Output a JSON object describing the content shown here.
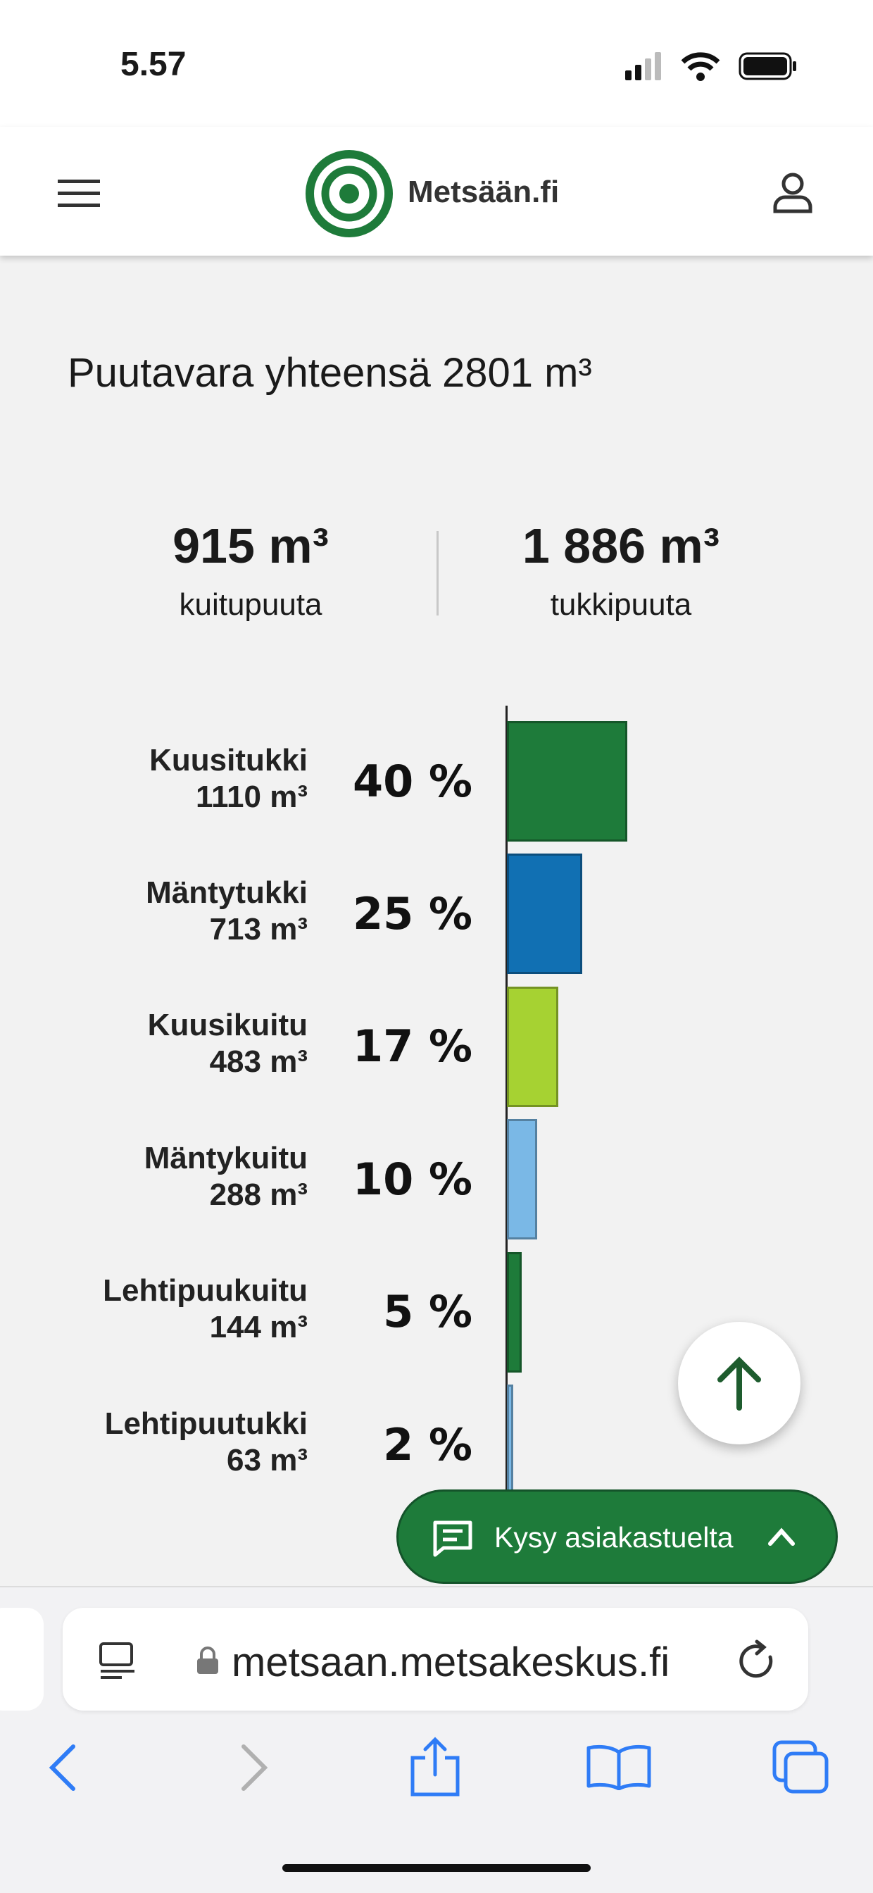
{
  "status_bar": {
    "time": "5.57"
  },
  "header": {
    "logo_text": "Metsään.fi"
  },
  "summary": {
    "title": "Puutavara yhteensä 2801 m³",
    "items": [
      {
        "amount": "915 m³",
        "label": "kuitupuuta"
      },
      {
        "amount": "1 886 m³",
        "label": "tukkipuuta"
      }
    ]
  },
  "chart": {
    "type": "bar",
    "categories": [
      "Kuusitukki",
      "Mäntytukki",
      "Kuusikuitu",
      "Mäntykuitu",
      "Lehtipuukuitu",
      "Lehtipuutukki"
    ],
    "volumes": [
      "1110 m³",
      "713 m³",
      "483 m³",
      "288 m³",
      "144 m³",
      "63 m³"
    ],
    "values": [
      40,
      25,
      17,
      10,
      5,
      2
    ],
    "value_labels": [
      "40 %",
      "25 %",
      "17 %",
      "10 %",
      "5 %",
      "2 %"
    ],
    "colors": [
      "#1e7b3a",
      "#1170b3",
      "#a6d232",
      "#7ab8e6",
      "#1e7b3a",
      "#7ab8e6"
    ]
  },
  "chat_button": {
    "label": "Kysy asiakastuelta"
  },
  "browser": {
    "url": "metsaan.metsakeskus.fi"
  }
}
